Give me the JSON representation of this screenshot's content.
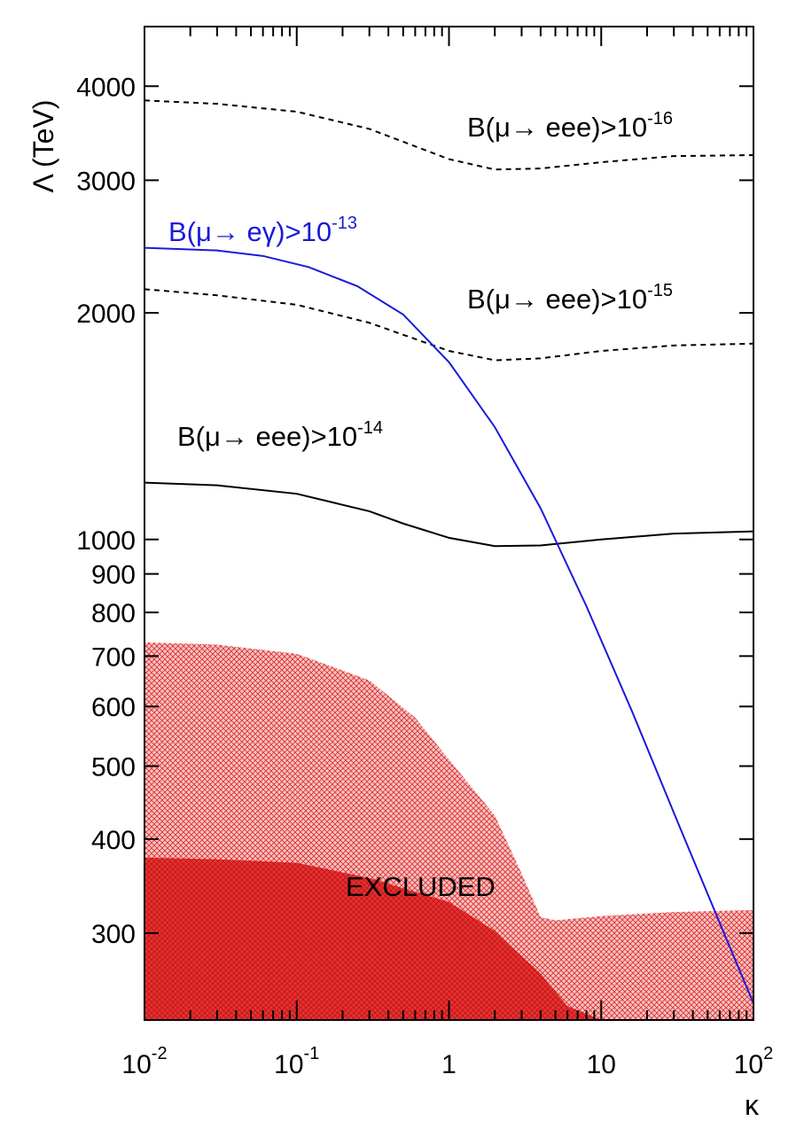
{
  "chart_data": {
    "type": "line",
    "xscale": "log",
    "yscale": "log",
    "xlim": [
      0.01,
      100
    ],
    "ylim": [
      230,
      4800
    ],
    "xlabel": "κ",
    "ylabel": "Λ (TeV)",
    "x_ticks": [
      {
        "value": 0.01,
        "base": "10",
        "exp": "-2"
      },
      {
        "value": 0.1,
        "base": "10",
        "exp": "-1"
      },
      {
        "value": 1,
        "base": "1",
        "exp": ""
      },
      {
        "value": 10,
        "base": "10",
        "exp": ""
      },
      {
        "value": 100,
        "base": "10",
        "exp": "2"
      }
    ],
    "y_ticks": [
      {
        "value": 300,
        "label": "300"
      },
      {
        "value": 400,
        "label": "400"
      },
      {
        "value": 500,
        "label": "500"
      },
      {
        "value": 600,
        "label": "600"
      },
      {
        "value": 700,
        "label": "700"
      },
      {
        "value": 800,
        "label": "800"
      },
      {
        "value": 900,
        "label": "900"
      },
      {
        "value": 1000,
        "label": "1000"
      },
      {
        "value": 2000,
        "label": "2000"
      },
      {
        "value": 3000,
        "label": "3000"
      },
      {
        "value": 4000,
        "label": "4000"
      }
    ],
    "series": [
      {
        "color": "#000000",
        "dash": "dashed",
        "x": [
          0.01,
          0.03,
          0.1,
          0.3,
          1,
          2,
          4,
          10,
          30,
          100
        ],
        "y": [
          3830,
          3790,
          3700,
          3510,
          3200,
          3100,
          3110,
          3170,
          3230,
          3240
        ]
      },
      {
        "color": "#000000",
        "dash": "dashed",
        "x": [
          0.01,
          0.03,
          0.1,
          0.3,
          1,
          2,
          4,
          10,
          30,
          100
        ],
        "y": [
          2150,
          2110,
          2050,
          1940,
          1780,
          1730,
          1740,
          1780,
          1810,
          1820
        ]
      },
      {
        "color": "#000000",
        "dash": "solid",
        "x": [
          0.01,
          0.03,
          0.1,
          0.3,
          0.5,
          1,
          2,
          4,
          10,
          30,
          100
        ],
        "y": [
          1190,
          1180,
          1150,
          1090,
          1050,
          1005,
          980,
          982,
          1000,
          1018,
          1025
        ]
      },
      {
        "color": "#1a1adc",
        "dash": "solid",
        "x": [
          0.01,
          0.03,
          0.06,
          0.12,
          0.25,
          0.5,
          1,
          2,
          4,
          8,
          16,
          32,
          64,
          100
        ],
        "y": [
          2440,
          2420,
          2380,
          2300,
          2170,
          1990,
          1720,
          1410,
          1100,
          815,
          590,
          420,
          300,
          242
        ]
      }
    ],
    "regions": [
      {
        "label": "EXCLUDED",
        "color": "#d00000",
        "pattern": "hatched",
        "x": [
          0.01,
          0.03,
          0.1,
          0.3,
          0.6,
          1,
          2,
          3,
          4,
          5,
          10,
          30,
          100
        ],
        "y": [
          730,
          725,
          705,
          650,
          580,
          510,
          430,
          360,
          315,
          312,
          316,
          320,
          322
        ]
      },
      {
        "color": "#d00000",
        "pattern": "solid",
        "x": [
          0.01,
          0.03,
          0.1,
          0.3,
          1,
          2,
          4,
          6,
          10
        ],
        "y": [
          378,
          376,
          372,
          355,
          330,
          302,
          265,
          240,
          230
        ]
      }
    ],
    "annotations": [
      {
        "text": "B(μ→ eee)>10",
        "exp": "-16",
        "color": "#000000"
      },
      {
        "text": "B(μ→ eγ)>10",
        "exp": "-13",
        "color": "#1a1adc"
      },
      {
        "text": "B(μ→ eee)>10",
        "exp": "-15",
        "color": "#000000"
      },
      {
        "text": "B(μ→ eee)>10",
        "exp": "-14",
        "color": "#000000"
      },
      {
        "text": "EXCLUDED",
        "exp": "",
        "color": "#000000"
      }
    ]
  }
}
